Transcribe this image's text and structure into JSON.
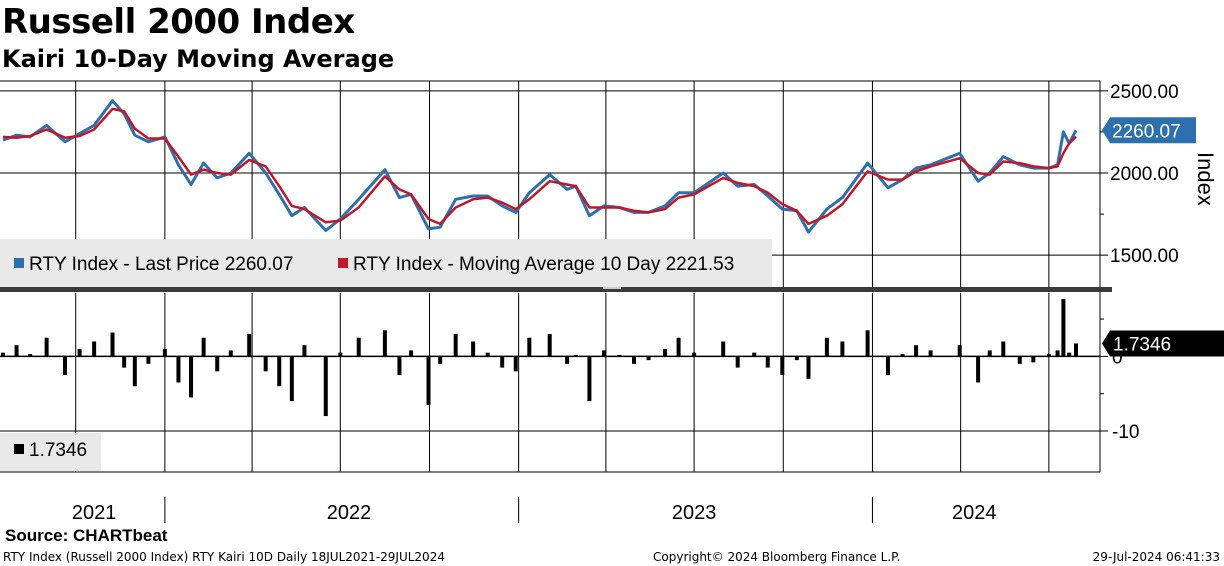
{
  "header": {
    "title": "Russell 2000 Index",
    "subtitle": "Kairi 10-Day Moving Average"
  },
  "chart_data": [
    {
      "type": "line",
      "ylabel": "Index",
      "ylim": [
        1300,
        2560
      ],
      "yticks": [
        "2500.00",
        "2000.00",
        "1500.00"
      ],
      "grid": true,
      "legend_position": "bottom-left",
      "x_range": [
        "2021-07-18",
        "2024-07-29"
      ],
      "x_labels": [
        "2021",
        "2022",
        "2023",
        "2024"
      ],
      "series": [
        {
          "name": "RTY Index - Last Price",
          "legend_label": "RTY Index - Last Price 2260.07",
          "color": "#2e6fad",
          "last_value_label": "2260.07",
          "points": [
            [
              "2021-07-18",
              2200
            ],
            [
              "2021-08-01",
              2230
            ],
            [
              "2021-08-15",
              2220
            ],
            [
              "2021-09-01",
              2290
            ],
            [
              "2021-09-20",
              2190
            ],
            [
              "2021-10-05",
              2240
            ],
            [
              "2021-10-20",
              2290
            ],
            [
              "2021-11-08",
              2440
            ],
            [
              "2021-11-20",
              2360
            ],
            [
              "2021-12-01",
              2230
            ],
            [
              "2021-12-15",
              2190
            ],
            [
              "2022-01-01",
              2220
            ],
            [
              "2022-01-15",
              2050
            ],
            [
              "2022-01-28",
              1930
            ],
            [
              "2022-02-10",
              2060
            ],
            [
              "2022-02-24",
              1970
            ],
            [
              "2022-03-10",
              2000
            ],
            [
              "2022-03-29",
              2120
            ],
            [
              "2022-04-15",
              2000
            ],
            [
              "2022-04-29",
              1870
            ],
            [
              "2022-05-12",
              1740
            ],
            [
              "2022-05-25",
              1790
            ],
            [
              "2022-06-16",
              1650
            ],
            [
              "2022-07-01",
              1720
            ],
            [
              "2022-07-20",
              1840
            ],
            [
              "2022-08-16",
              2020
            ],
            [
              "2022-08-31",
              1850
            ],
            [
              "2022-09-12",
              1870
            ],
            [
              "2022-09-30",
              1660
            ],
            [
              "2022-10-12",
              1670
            ],
            [
              "2022-10-28",
              1840
            ],
            [
              "2022-11-15",
              1860
            ],
            [
              "2022-11-30",
              1860
            ],
            [
              "2022-12-15",
              1800
            ],
            [
              "2022-12-29",
              1760
            ],
            [
              "2023-01-12",
              1880
            ],
            [
              "2023-02-02",
              1990
            ],
            [
              "2023-02-20",
              1900
            ],
            [
              "2023-03-01",
              1920
            ],
            [
              "2023-03-15",
              1740
            ],
            [
              "2023-03-30",
              1800
            ],
            [
              "2023-04-15",
              1790
            ],
            [
              "2023-04-30",
              1760
            ],
            [
              "2023-05-15",
              1760
            ],
            [
              "2023-06-01",
              1800
            ],
            [
              "2023-06-15",
              1880
            ],
            [
              "2023-07-01",
              1880
            ],
            [
              "2023-07-31",
              2000
            ],
            [
              "2023-08-15",
              1920
            ],
            [
              "2023-09-01",
              1930
            ],
            [
              "2023-09-15",
              1860
            ],
            [
              "2023-09-30",
              1780
            ],
            [
              "2023-10-15",
              1770
            ],
            [
              "2023-10-27",
              1640
            ],
            [
              "2023-11-15",
              1780
            ],
            [
              "2023-12-01",
              1850
            ],
            [
              "2023-12-27",
              2060
            ],
            [
              "2024-01-17",
              1910
            ],
            [
              "2024-02-01",
              1960
            ],
            [
              "2024-02-15",
              2030
            ],
            [
              "2024-03-01",
              2050
            ],
            [
              "2024-03-31",
              2120
            ],
            [
              "2024-04-19",
              1950
            ],
            [
              "2024-05-01",
              2000
            ],
            [
              "2024-05-15",
              2100
            ],
            [
              "2024-06-01",
              2050
            ],
            [
              "2024-06-15",
              2030
            ],
            [
              "2024-07-01",
              2030
            ],
            [
              "2024-07-10",
              2050
            ],
            [
              "2024-07-16",
              2250
            ],
            [
              "2024-07-22",
              2180
            ],
            [
              "2024-07-29",
              2260.07
            ]
          ]
        },
        {
          "name": "RTY Index - Moving Average 10 Day",
          "legend_label": "RTY Index - Moving Average 10 Day 2221.53",
          "color": "#c0182a",
          "last_value_label": "2221.53",
          "points": [
            [
              "2021-07-18",
              2220
            ],
            [
              "2021-08-01",
              2215
            ],
            [
              "2021-08-15",
              2225
            ],
            [
              "2021-09-01",
              2265
            ],
            [
              "2021-09-20",
              2215
            ],
            [
              "2021-10-05",
              2225
            ],
            [
              "2021-10-20",
              2265
            ],
            [
              "2021-11-08",
              2390
            ],
            [
              "2021-11-20",
              2375
            ],
            [
              "2021-12-01",
              2270
            ],
            [
              "2021-12-15",
              2210
            ],
            [
              "2022-01-01",
              2210
            ],
            [
              "2022-01-15",
              2100
            ],
            [
              "2022-01-28",
              1990
            ],
            [
              "2022-02-10",
              2020
            ],
            [
              "2022-02-24",
              2000
            ],
            [
              "2022-03-10",
              1990
            ],
            [
              "2022-03-29",
              2080
            ],
            [
              "2022-04-15",
              2040
            ],
            [
              "2022-04-29",
              1920
            ],
            [
              "2022-05-12",
              1800
            ],
            [
              "2022-05-25",
              1780
            ],
            [
              "2022-06-16",
              1700
            ],
            [
              "2022-07-01",
              1710
            ],
            [
              "2022-07-20",
              1790
            ],
            [
              "2022-08-16",
              1980
            ],
            [
              "2022-08-31",
              1900
            ],
            [
              "2022-09-12",
              1870
            ],
            [
              "2022-09-30",
              1720
            ],
            [
              "2022-10-12",
              1690
            ],
            [
              "2022-10-28",
              1790
            ],
            [
              "2022-11-15",
              1840
            ],
            [
              "2022-11-30",
              1850
            ],
            [
              "2022-12-15",
              1820
            ],
            [
              "2022-12-29",
              1780
            ],
            [
              "2023-01-12",
              1840
            ],
            [
              "2023-02-02",
              1950
            ],
            [
              "2023-02-20",
              1930
            ],
            [
              "2023-03-01",
              1920
            ],
            [
              "2023-03-15",
              1790
            ],
            [
              "2023-03-30",
              1790
            ],
            [
              "2023-04-15",
              1790
            ],
            [
              "2023-04-30",
              1770
            ],
            [
              "2023-05-15",
              1760
            ],
            [
              "2023-06-01",
              1780
            ],
            [
              "2023-06-15",
              1850
            ],
            [
              "2023-07-01",
              1870
            ],
            [
              "2023-07-31",
              1970
            ],
            [
              "2023-08-15",
              1940
            ],
            [
              "2023-09-01",
              1920
            ],
            [
              "2023-09-15",
              1880
            ],
            [
              "2023-09-30",
              1810
            ],
            [
              "2023-10-15",
              1770
            ],
            [
              "2023-10-27",
              1690
            ],
            [
              "2023-11-15",
              1740
            ],
            [
              "2023-12-01",
              1810
            ],
            [
              "2023-12-27",
              2010
            ],
            [
              "2024-01-17",
              1960
            ],
            [
              "2024-02-01",
              1960
            ],
            [
              "2024-02-15",
              2010
            ],
            [
              "2024-03-01",
              2040
            ],
            [
              "2024-03-31",
              2090
            ],
            [
              "2024-04-19",
              2000
            ],
            [
              "2024-05-01",
              1990
            ],
            [
              "2024-05-15",
              2070
            ],
            [
              "2024-06-01",
              2060
            ],
            [
              "2024-06-15",
              2040
            ],
            [
              "2024-07-01",
              2030
            ],
            [
              "2024-07-10",
              2040
            ],
            [
              "2024-07-16",
              2120
            ],
            [
              "2024-07-22",
              2180
            ],
            [
              "2024-07-29",
              2221.53
            ]
          ]
        }
      ]
    },
    {
      "type": "bar",
      "ylim": [
        -15.5,
        8.5
      ],
      "yticks": [
        "0",
        "-10"
      ],
      "grid": true,
      "legend_position": "bottom-left",
      "series": [
        {
          "name": "RTY Kairi 10D",
          "legend_label": "1.7346",
          "color": "#000000",
          "last_value_label": "1.7346",
          "points": [
            [
              "2021-07-18",
              0.5
            ],
            [
              "2021-08-01",
              1.5
            ],
            [
              "2021-08-15",
              0.3
            ],
            [
              "2021-09-01",
              2.5
            ],
            [
              "2021-09-20",
              -2.5
            ],
            [
              "2021-10-05",
              1.0
            ],
            [
              "2021-10-20",
              2.0
            ],
            [
              "2021-11-08",
              3.2
            ],
            [
              "2021-11-20",
              -1.5
            ],
            [
              "2021-12-01",
              -4.0
            ],
            [
              "2021-12-15",
              -1.0
            ],
            [
              "2022-01-01",
              1.0
            ],
            [
              "2022-01-15",
              -3.5
            ],
            [
              "2022-01-28",
              -5.5
            ],
            [
              "2022-02-10",
              2.5
            ],
            [
              "2022-02-24",
              -2.0
            ],
            [
              "2022-03-10",
              0.8
            ],
            [
              "2022-03-29",
              3.0
            ],
            [
              "2022-04-15",
              -2.0
            ],
            [
              "2022-04-29",
              -4.0
            ],
            [
              "2022-05-12",
              -6.0
            ],
            [
              "2022-05-25",
              1.5
            ],
            [
              "2022-06-16",
              -8.0
            ],
            [
              "2022-07-01",
              0.5
            ],
            [
              "2022-07-20",
              2.5
            ],
            [
              "2022-08-16",
              3.5
            ],
            [
              "2022-08-31",
              -2.5
            ],
            [
              "2022-09-12",
              0.8
            ],
            [
              "2022-09-30",
              -6.5
            ],
            [
              "2022-10-12",
              -1.0
            ],
            [
              "2022-10-28",
              3.0
            ],
            [
              "2022-11-15",
              2.0
            ],
            [
              "2022-11-30",
              0.5
            ],
            [
              "2022-12-15",
              -1.5
            ],
            [
              "2022-12-29",
              -2.0
            ],
            [
              "2023-01-12",
              2.5
            ],
            [
              "2023-02-02",
              3.0
            ],
            [
              "2023-02-20",
              -1.0
            ],
            [
              "2023-03-01",
              0.2
            ],
            [
              "2023-03-15",
              -6.0
            ],
            [
              "2023-03-30",
              0.8
            ],
            [
              "2023-04-15",
              0.2
            ],
            [
              "2023-04-30",
              -1.0
            ],
            [
              "2023-05-15",
              -0.5
            ],
            [
              "2023-06-01",
              1.0
            ],
            [
              "2023-06-15",
              2.5
            ],
            [
              "2023-07-01",
              0.5
            ],
            [
              "2023-07-31",
              2.0
            ],
            [
              "2023-08-15",
              -1.5
            ],
            [
              "2023-09-01",
              0.5
            ],
            [
              "2023-09-15",
              -1.5
            ],
            [
              "2023-09-30",
              -2.5
            ],
            [
              "2023-10-15",
              -0.5
            ],
            [
              "2023-10-27",
              -3.0
            ],
            [
              "2023-11-15",
              2.5
            ],
            [
              "2023-12-01",
              2.0
            ],
            [
              "2023-12-27",
              3.5
            ],
            [
              "2024-01-17",
              -2.5
            ],
            [
              "2024-02-01",
              0.3
            ],
            [
              "2024-02-15",
              1.5
            ],
            [
              "2024-03-01",
              0.8
            ],
            [
              "2024-03-31",
              1.5
            ],
            [
              "2024-04-19",
              -3.5
            ],
            [
              "2024-05-01",
              0.8
            ],
            [
              "2024-05-15",
              2.0
            ],
            [
              "2024-06-01",
              -1.0
            ],
            [
              "2024-06-15",
              -0.8
            ],
            [
              "2024-07-01",
              0.3
            ],
            [
              "2024-07-10",
              0.8
            ],
            [
              "2024-07-16",
              7.7
            ],
            [
              "2024-07-22",
              0.5
            ],
            [
              "2024-07-29",
              1.7346
            ]
          ]
        }
      ]
    }
  ],
  "source": "Source: CHARTbeat",
  "footer": {
    "left": "RTY Index (Russell 2000 Index) RTY Kairi 10D  Daily 18JUL2021-29JUL2024",
    "center": "Copyright© 2024 Bloomberg Finance L.P.",
    "right": "29-Jul-2024 06:41:33"
  }
}
